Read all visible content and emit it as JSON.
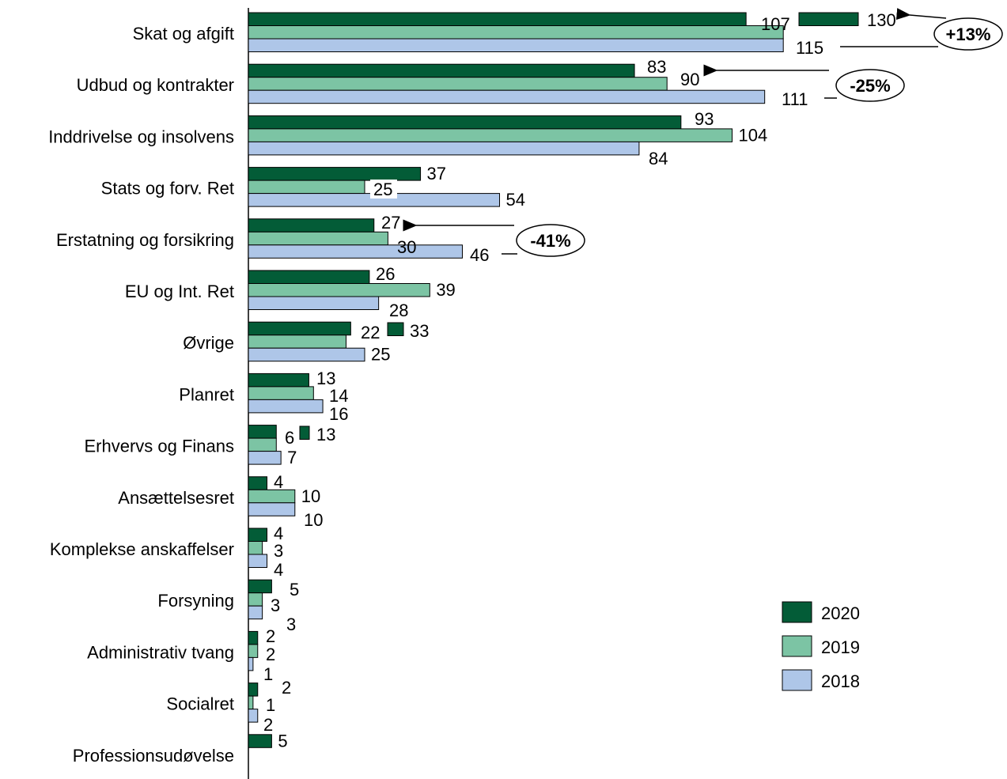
{
  "chart_data": {
    "type": "bar",
    "orientation": "horizontal",
    "title": "",
    "xlabel": "",
    "ylabel": "",
    "grid": false,
    "legend_position": "bottom-right",
    "categories": [
      "Skat og afgift",
      "Udbud og kontrakter",
      "Inddrivelse og insolvens",
      "Stats og forv. Ret",
      "Erstatning og forsikring",
      "EU og Int. Ret",
      "Øvrige",
      "Planret",
      "Erhvervs og Finans",
      "Ansættelsesret",
      "Komplekse anskaffelser",
      "Forsyning",
      "Administrativ tvang",
      "Socialret",
      "Professionsudøvelse"
    ],
    "series": [
      {
        "name": "2020",
        "color": "#035c37",
        "values": [
          107,
          83,
          93,
          37,
          27,
          26,
          22,
          13,
          6,
          4,
          4,
          5,
          2,
          2,
          5
        ]
      },
      {
        "name": "2019",
        "color": "#7cc4a4",
        "values": [
          115,
          90,
          104,
          25,
          30,
          39,
          21,
          14,
          6,
          10,
          3,
          3,
          2,
          1,
          null
        ]
      },
      {
        "name": "2018",
        "color": "#aec6e8",
        "values": [
          115,
          111,
          84,
          54,
          46,
          28,
          25,
          16,
          7,
          10,
          4,
          3,
          1,
          2,
          null
        ]
      }
    ],
    "value_labels": [
      [
        "107",
        "",
        "115"
      ],
      [
        "83",
        "90",
        "111"
      ],
      [
        "93",
        "104",
        "84"
      ],
      [
        "37",
        "25",
        "54"
      ],
      [
        "27",
        "30",
        "46"
      ],
      [
        "26",
        "39",
        "28"
      ],
      [
        "22",
        "",
        "25"
      ],
      [
        "13",
        "14",
        "16"
      ],
      [
        "6",
        "",
        "7"
      ],
      [
        "4",
        "10",
        "10"
      ],
      [
        "4",
        "3",
        "4"
      ],
      [
        "5",
        "3",
        "3"
      ],
      [
        "2",
        "2",
        "1"
      ],
      [
        "2",
        "1",
        "2"
      ],
      [
        "5",
        "",
        ""
      ]
    ],
    "extra_bars": [
      {
        "category": "Skat og afgift",
        "value": 130,
        "label": "130"
      },
      {
        "category": "Øvrige",
        "value": 33,
        "label": "33"
      },
      {
        "category": "Erhvervs og Finans",
        "value": 13,
        "label": "13"
      }
    ],
    "callouts": [
      {
        "category": "Skat og afgift",
        "text": "+13%"
      },
      {
        "category": "Udbud og kontrakter",
        "text": "-25%"
      },
      {
        "category": "Erstatning og forsikring",
        "text": "-41%"
      }
    ]
  }
}
